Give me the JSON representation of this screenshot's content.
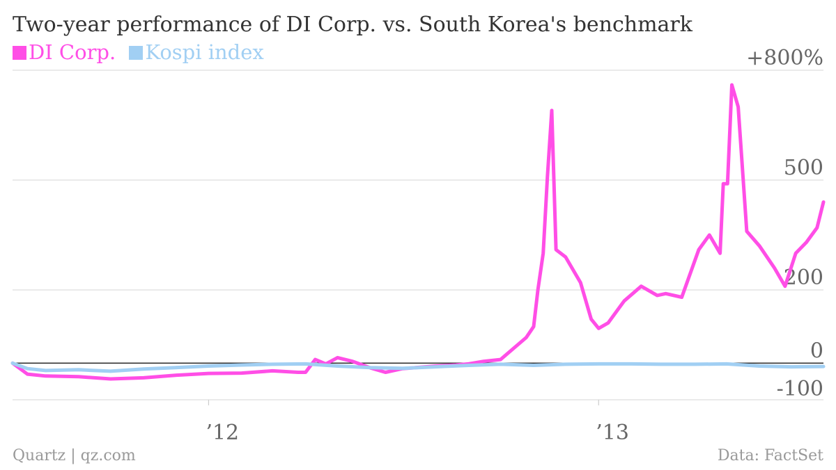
{
  "chart_data": {
    "type": "line",
    "title": "Two-year performance of DI Corp. vs. South Korea's benchmark",
    "xlabel": "",
    "ylabel": "",
    "x_range": [
      "2011-07-01",
      "2013-07-31"
    ],
    "ylim": [
      -100,
      800
    ],
    "y_ticks": [
      {
        "value": 800,
        "label": "+800%"
      },
      {
        "value": 500,
        "label": "500"
      },
      {
        "value": 200,
        "label": "200"
      },
      {
        "value": 0,
        "label": "0"
      },
      {
        "value": -100,
        "label": "-100"
      }
    ],
    "x_ticks": [
      {
        "value": "2012-01-01",
        "label": "’12"
      },
      {
        "value": "2013-01-01",
        "label": "’13"
      }
    ],
    "grid": true,
    "legend_position": "top-left",
    "series": [
      {
        "name": "DI Corp.",
        "color": "#ff4ee6",
        "x": [
          "2011-07-01",
          "2011-07-15",
          "2011-08-01",
          "2011-09-01",
          "2011-10-01",
          "2011-11-01",
          "2011-12-01",
          "2012-01-01",
          "2012-02-01",
          "2012-03-01",
          "2012-03-25",
          "2012-04-01",
          "2012-04-10",
          "2012-04-20",
          "2012-05-01",
          "2012-05-15",
          "2012-06-01",
          "2012-06-15",
          "2012-07-01",
          "2012-08-01",
          "2012-08-20",
          "2012-09-01",
          "2012-09-15",
          "2012-10-01",
          "2012-10-15",
          "2012-10-25",
          "2012-11-01",
          "2012-11-05",
          "2012-11-10",
          "2012-11-14",
          "2012-11-18",
          "2012-11-22",
          "2012-12-01",
          "2012-12-15",
          "2012-12-25",
          "2013-01-01",
          "2013-01-10",
          "2013-01-25",
          "2013-02-10",
          "2013-02-25",
          "2013-03-05",
          "2013-03-20",
          "2013-04-05",
          "2013-04-15",
          "2013-04-25",
          "2013-04-28",
          "2013-05-02",
          "2013-05-06",
          "2013-05-12",
          "2013-05-20",
          "2013-06-01",
          "2013-06-15",
          "2013-06-25",
          "2013-07-05",
          "2013-07-15",
          "2013-07-25",
          "2013-07-31"
        ],
        "values": [
          0,
          -30,
          -35,
          -37,
          -43,
          -40,
          -33,
          -28,
          -27,
          -21,
          -25,
          -25,
          10,
          -2,
          15,
          5,
          -13,
          -25,
          -15,
          -8,
          -5,
          -2,
          5,
          10,
          45,
          70,
          100,
          200,
          300,
          510,
          690,
          310,
          290,
          220,
          120,
          95,
          110,
          170,
          210,
          185,
          190,
          180,
          310,
          350,
          300,
          490,
          490,
          760,
          700,
          360,
          320,
          260,
          210,
          300,
          330,
          370,
          440
        ],
        "values_note": ""
      },
      {
        "name": "Kospi index",
        "color": "#a1cff3",
        "x": [
          "2011-07-01",
          "2011-07-15",
          "2011-08-01",
          "2011-09-01",
          "2011-10-01",
          "2011-11-01",
          "2011-12-01",
          "2012-01-01",
          "2012-02-01",
          "2012-03-01",
          "2012-04-01",
          "2012-05-01",
          "2012-06-01",
          "2012-07-01",
          "2012-08-01",
          "2012-09-01",
          "2012-10-01",
          "2012-11-01",
          "2012-12-01",
          "2013-01-01",
          "2013-02-01",
          "2013-03-01",
          "2013-04-01",
          "2013-05-01",
          "2013-06-01",
          "2013-07-01",
          "2013-07-31"
        ],
        "values": [
          0,
          -15,
          -20,
          -18,
          -22,
          -16,
          -12,
          -8,
          -5,
          -3,
          -2,
          -8,
          -12,
          -14,
          -10,
          -6,
          -3,
          -6,
          -3,
          -2,
          -2,
          -3,
          -3,
          -2,
          -8,
          -10,
          -9
        ]
      }
    ]
  },
  "footer": {
    "source_left": "Quartz | qz.com",
    "source_right": "Data: FactSet"
  }
}
